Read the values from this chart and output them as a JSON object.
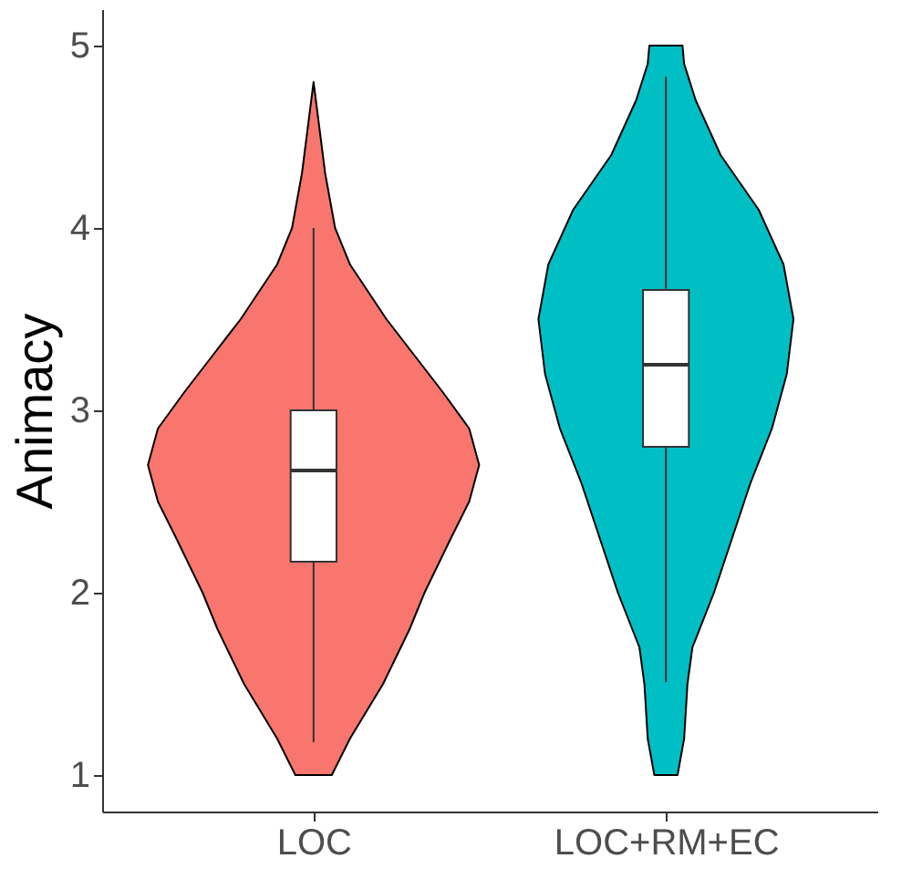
{
  "chart_data": {
    "type": "box",
    "ylabel": "Animacy",
    "categories": [
      "LOC",
      "LOC+RM+EC"
    ],
    "ylim": [
      0.8,
      5.2
    ],
    "yticks": [
      1,
      2,
      3,
      4,
      5
    ],
    "grid": false,
    "boxes": [
      {
        "low": 1.18,
        "q1": 2.17,
        "median": 2.67,
        "q3": 3.0,
        "high": 4.0
      },
      {
        "low": 1.51,
        "q1": 2.8,
        "median": 3.25,
        "q3": 3.66,
        "high": 4.83
      }
    ]
  }
}
